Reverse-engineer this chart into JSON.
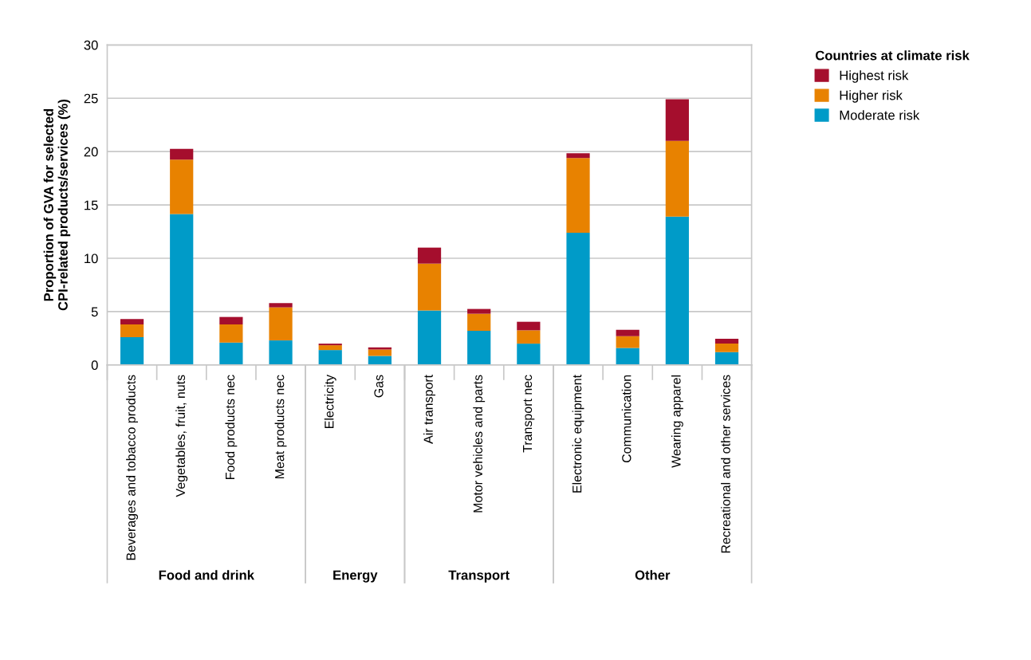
{
  "chart_data": {
    "type": "bar",
    "stacked": true,
    "ylabel": "Proportion of GVA for selected\nCPI-related products/services (%)",
    "legend_title": "Countries at climate risk",
    "categories": [
      "Beverages and tobacco products",
      "Vegetables, fruit, nuts",
      "Food products nec",
      "Meat products nec",
      "Electricity",
      "Gas",
      "Air transport",
      "Motor vehicles and parts",
      "Transport nec",
      "Electronic equipment",
      "Communication",
      "Wearing apparel",
      "Recreational and other services"
    ],
    "series": [
      {
        "name": "Moderate risk",
        "color": "#009bc8",
        "values": [
          2.6,
          14.15,
          2.1,
          2.3,
          1.4,
          0.85,
          5.1,
          3.2,
          2.0,
          12.4,
          1.6,
          13.9,
          1.2
        ]
      },
      {
        "name": "Higher risk",
        "color": "#e88200",
        "values": [
          1.2,
          5.1,
          1.7,
          3.1,
          0.45,
          0.6,
          4.4,
          1.6,
          1.25,
          7.0,
          1.1,
          7.1,
          0.8
        ]
      },
      {
        "name": "Highest risk",
        "color": "#a50e2d",
        "values": [
          0.5,
          1.0,
          0.7,
          0.4,
          0.15,
          0.2,
          1.5,
          0.45,
          0.8,
          0.45,
          0.6,
          3.9,
          0.45
        ]
      }
    ],
    "annotations": [
      "Food and drink",
      "Energy",
      "Transport",
      "Other"
    ],
    "ylim": [
      0,
      30
    ],
    "yticks": [
      0,
      5,
      10,
      15,
      20,
      25,
      30
    ],
    "grid": "y",
    "legend": "top right"
  }
}
